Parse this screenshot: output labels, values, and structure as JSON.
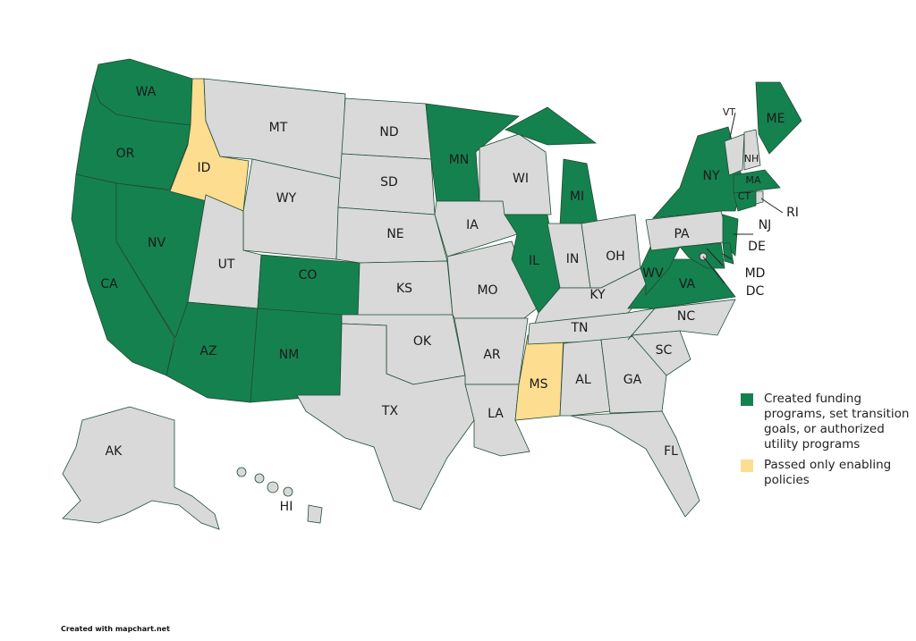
{
  "colors": {
    "funding": "#15814f",
    "enabling": "#fddd90",
    "none": "#d9d9d9",
    "border": "#1f4d33"
  },
  "states": [
    {
      "abbr": "WA",
      "category": "funding"
    },
    {
      "abbr": "OR",
      "category": "funding"
    },
    {
      "abbr": "CA",
      "category": "funding"
    },
    {
      "abbr": "NV",
      "category": "funding"
    },
    {
      "abbr": "ID",
      "category": "enabling"
    },
    {
      "abbr": "MT",
      "category": "none"
    },
    {
      "abbr": "WY",
      "category": "none"
    },
    {
      "abbr": "UT",
      "category": "none"
    },
    {
      "abbr": "CO",
      "category": "funding"
    },
    {
      "abbr": "AZ",
      "category": "funding"
    },
    {
      "abbr": "NM",
      "category": "funding"
    },
    {
      "abbr": "ND",
      "category": "none"
    },
    {
      "abbr": "SD",
      "category": "none"
    },
    {
      "abbr": "NE",
      "category": "none"
    },
    {
      "abbr": "KS",
      "category": "none"
    },
    {
      "abbr": "OK",
      "category": "none"
    },
    {
      "abbr": "TX",
      "category": "none"
    },
    {
      "abbr": "MN",
      "category": "funding"
    },
    {
      "abbr": "IA",
      "category": "none"
    },
    {
      "abbr": "MO",
      "category": "none"
    },
    {
      "abbr": "AR",
      "category": "none"
    },
    {
      "abbr": "LA",
      "category": "none"
    },
    {
      "abbr": "MS",
      "category": "enabling"
    },
    {
      "abbr": "WI",
      "category": "none"
    },
    {
      "abbr": "IL",
      "category": "funding"
    },
    {
      "abbr": "MI",
      "category": "funding"
    },
    {
      "abbr": "IN",
      "category": "none"
    },
    {
      "abbr": "OH",
      "category": "none"
    },
    {
      "abbr": "KY",
      "category": "none"
    },
    {
      "abbr": "TN",
      "category": "none"
    },
    {
      "abbr": "AL",
      "category": "none"
    },
    {
      "abbr": "GA",
      "category": "none"
    },
    {
      "abbr": "FL",
      "category": "none"
    },
    {
      "abbr": "SC",
      "category": "none"
    },
    {
      "abbr": "NC",
      "category": "none"
    },
    {
      "abbr": "VA",
      "category": "funding"
    },
    {
      "abbr": "WV",
      "category": "funding"
    },
    {
      "abbr": "PA",
      "category": "none"
    },
    {
      "abbr": "NY",
      "category": "funding"
    },
    {
      "abbr": "NJ",
      "category": "funding"
    },
    {
      "abbr": "DE",
      "category": "funding"
    },
    {
      "abbr": "MD",
      "category": "funding"
    },
    {
      "abbr": "DC",
      "category": "none"
    },
    {
      "abbr": "VT",
      "category": "none"
    },
    {
      "abbr": "NH",
      "category": "none"
    },
    {
      "abbr": "ME",
      "category": "funding"
    },
    {
      "abbr": "MA",
      "category": "funding"
    },
    {
      "abbr": "CT",
      "category": "funding"
    },
    {
      "abbr": "RI",
      "category": "none"
    },
    {
      "abbr": "AK",
      "category": "none"
    },
    {
      "abbr": "HI",
      "category": "none"
    }
  ],
  "legend": [
    {
      "label": "Created funding programs, set transition goals, or authorized utility programs",
      "category": "funding"
    },
    {
      "label": "Passed only enabling policies",
      "category": "enabling"
    }
  ],
  "credit": "Created with mapchart.net"
}
